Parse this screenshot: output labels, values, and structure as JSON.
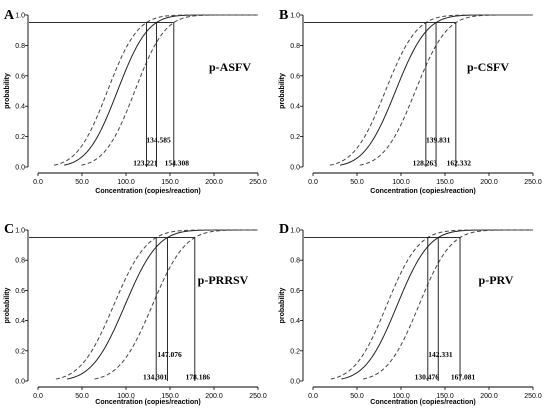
{
  "chart_data": [
    {
      "type": "line",
      "panel": "A",
      "label": "p-ASFV",
      "xlabel": "Concentration (copies/reaction)",
      "ylabel": "probability",
      "xlim": [
        0,
        250
      ],
      "ylim": [
        0,
        1
      ],
      "xticks": [
        "0.0",
        "50.0",
        "100.0",
        "150.0",
        "200.0",
        "250.0"
      ],
      "yticks": [
        "0.0",
        "0.2",
        "0.4",
        "0.6",
        "0.8",
        "1.0"
      ],
      "reference_probability": 0.95,
      "lod": 134.585,
      "lower_ci": 123.221,
      "upper_ci": 154.308,
      "annotations": [
        "134.585",
        "123.221",
        "154.308"
      ]
    },
    {
      "type": "line",
      "panel": "B",
      "label": "p-CSFV",
      "xlabel": "Concentration (copies/reaction)",
      "ylabel": "probability",
      "xlim": [
        0,
        250
      ],
      "ylim": [
        0,
        1
      ],
      "xticks": [
        "0.0",
        "50.0",
        "100.0",
        "150.0",
        "200.0",
        "250.0"
      ],
      "yticks": [
        "0.0",
        "0.2",
        "0.4",
        "0.6",
        "0.8",
        "1.0"
      ],
      "reference_probability": 0.95,
      "lod": 139.831,
      "lower_ci": 128.263,
      "upper_ci": 162.332,
      "annotations": [
        "139.831",
        "128.263",
        "162.332"
      ]
    },
    {
      "type": "line",
      "panel": "C",
      "label": "p-PRRSV",
      "xlabel": "Concentration (copies/reaction)",
      "ylabel": "probability",
      "xlim": [
        0,
        250
      ],
      "ylim": [
        0,
        1
      ],
      "xticks": [
        "0.0",
        "50.0",
        "100.0",
        "150.0",
        "200.0",
        "250.0"
      ],
      "yticks": [
        "0.0",
        "0.2",
        "0.4",
        "0.6",
        "0.8",
        "1.0"
      ],
      "reference_probability": 0.95,
      "lod": 147.076,
      "lower_ci": 134.301,
      "upper_ci": 178.186,
      "annotations": [
        "147.076",
        "134.301",
        "178.186"
      ]
    },
    {
      "type": "line",
      "panel": "D",
      "label": "p-PRV",
      "xlabel": "Concentration (copies/reaction)",
      "ylabel": "probability",
      "xlim": [
        0,
        250
      ],
      "ylim": [
        0,
        1
      ],
      "xticks": [
        "0.0",
        "50.0",
        "100.0",
        "150.0",
        "200.0",
        "250.0"
      ],
      "yticks": [
        "0.0",
        "0.2",
        "0.4",
        "0.6",
        "0.8",
        "1.0"
      ],
      "reference_probability": 0.95,
      "lod": 142.331,
      "lower_ci": 130.476,
      "upper_ci": 167.081,
      "annotations": [
        "142.331",
        "130.476",
        "167.081"
      ]
    }
  ]
}
